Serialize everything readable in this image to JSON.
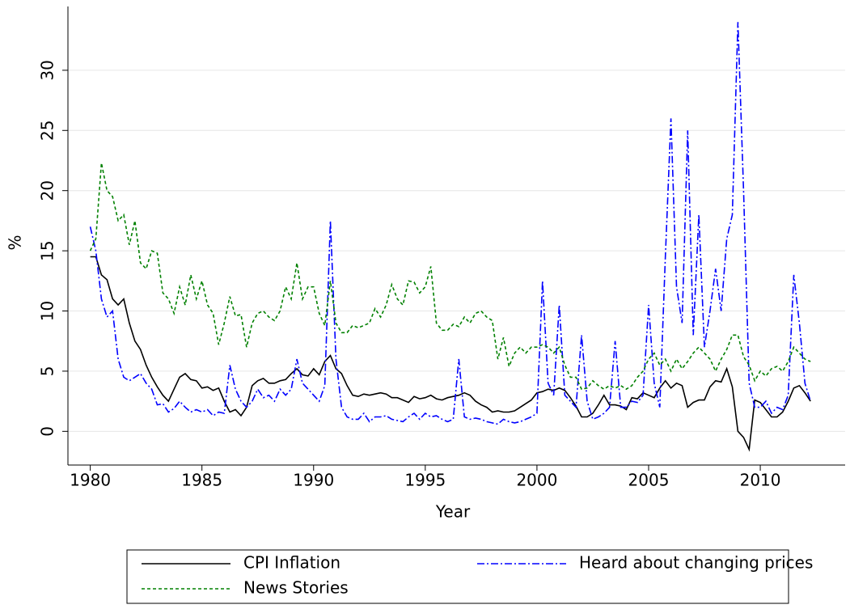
{
  "chart_data": {
    "type": "line",
    "x_label": "Year",
    "y_label": "%",
    "xlim": [
      1979,
      2013.8
    ],
    "ylim": [
      -2.8,
      35.3
    ],
    "xticks": [
      1980,
      1985,
      1990,
      1995,
      2000,
      2005,
      2010
    ],
    "yticks": [
      0,
      5,
      10,
      15,
      20,
      25,
      30
    ],
    "grid": true,
    "x": [
      1980,
      1980.25,
      1980.5,
      1980.75,
      1981,
      1981.25,
      1981.5,
      1981.75,
      1982,
      1982.25,
      1982.5,
      1982.75,
      1983,
      1983.25,
      1983.5,
      1983.75,
      1984,
      1984.25,
      1984.5,
      1984.75,
      1985,
      1985.25,
      1985.5,
      1985.75,
      1986,
      1986.25,
      1986.5,
      1986.75,
      1987,
      1987.25,
      1987.5,
      1987.75,
      1988,
      1988.25,
      1988.5,
      1988.75,
      1989,
      1989.25,
      1989.5,
      1989.75,
      1990,
      1990.25,
      1990.5,
      1990.75,
      1991,
      1991.25,
      1991.5,
      1991.75,
      1992,
      1992.25,
      1992.5,
      1992.75,
      1993,
      1993.25,
      1993.5,
      1993.75,
      1994,
      1994.25,
      1994.5,
      1994.75,
      1995,
      1995.25,
      1995.5,
      1995.75,
      1996,
      1996.25,
      1996.5,
      1996.75,
      1997,
      1997.25,
      1997.5,
      1997.75,
      1998,
      1998.25,
      1998.5,
      1998.75,
      1999,
      1999.25,
      1999.5,
      1999.75,
      2000,
      2000.25,
      2000.5,
      2000.75,
      2001,
      2001.25,
      2001.5,
      2001.75,
      2002,
      2002.25,
      2002.5,
      2002.75,
      2003,
      2003.25,
      2003.5,
      2003.75,
      2004,
      2004.25,
      2004.5,
      2004.75,
      2005,
      2005.25,
      2005.5,
      2005.75,
      2006,
      2006.25,
      2006.5,
      2006.75,
      2007,
      2007.25,
      2007.5,
      2007.75,
      2008,
      2008.25,
      2008.5,
      2008.75,
      2009,
      2009.25,
      2009.5,
      2009.75,
      2010,
      2010.25,
      2010.5,
      2010.75,
      2011,
      2011.25,
      2011.5,
      2011.75,
      2012,
      2012.25
    ],
    "series": [
      {
        "name": "CPI Inflation",
        "color": "#000000",
        "dash": "none",
        "values": [
          14.5,
          14.5,
          13,
          12.6,
          11,
          10.5,
          11,
          9,
          7.5,
          6.8,
          5.5,
          4.5,
          3.7,
          3,
          2.5,
          3.5,
          4.5,
          4.8,
          4.3,
          4.2,
          3.6,
          3.7,
          3.4,
          3.6,
          2.5,
          1.6,
          1.8,
          1.3,
          2,
          3.8,
          4.2,
          4.4,
          4,
          4,
          4.2,
          4.3,
          4.8,
          5.2,
          4.7,
          4.6,
          5.2,
          4.7,
          5.8,
          6.3,
          5.2,
          4.8,
          3.8,
          3,
          2.9,
          3.1,
          3,
          3.1,
          3.2,
          3.1,
          2.8,
          2.8,
          2.6,
          2.4,
          2.9,
          2.7,
          2.8,
          3,
          2.7,
          2.6,
          2.8,
          2.9,
          3,
          3.2,
          3,
          2.5,
          2.2,
          2,
          1.6,
          1.7,
          1.6,
          1.6,
          1.7,
          2,
          2.3,
          2.6,
          3.2,
          3.3,
          3.5,
          3.4,
          3.6,
          3.4,
          2.8,
          2.1,
          1.2,
          1.2,
          1.5,
          2.2,
          3,
          2.2,
          2.2,
          2.1,
          1.8,
          2.8,
          2.7,
          3.2,
          3,
          2.8,
          3.6,
          4.2,
          3.6,
          4,
          3.8,
          2,
          2.4,
          2.6,
          2.6,
          3.7,
          4.2,
          4.1,
          5.2,
          3.7,
          0,
          -0.5,
          -1.5,
          2.6,
          2.4,
          1.8,
          1.2,
          1.2,
          1.6,
          2.5,
          3.6,
          3.8,
          3.2,
          2.5
        ]
      },
      {
        "name": "Heard about changing prices",
        "color": "#0000ff",
        "dash": "9,3,2,3",
        "values": [
          17,
          15,
          11,
          9.5,
          10,
          6,
          4.5,
          4.2,
          4.5,
          4.8,
          4,
          3.5,
          2.2,
          2.3,
          1.6,
          1.9,
          2.5,
          2,
          1.6,
          1.8,
          1.6,
          1.8,
          1.3,
          1.6,
          1.5,
          5.5,
          3.5,
          2.5,
          2,
          2.5,
          3.5,
          2.8,
          3,
          2.5,
          3.5,
          3,
          3.5,
          6,
          4,
          3.5,
          3,
          2.5,
          3.8,
          17.5,
          6,
          2,
          1.2,
          1,
          1,
          1.5,
          0.8,
          1.2,
          1.2,
          1.3,
          1,
          0.9,
          0.8,
          1.2,
          1.5,
          1,
          1.5,
          1.2,
          1.3,
          1,
          0.8,
          1,
          6,
          1.2,
          1,
          1.1,
          1,
          0.8,
          0.7,
          0.6,
          1,
          0.8,
          0.7,
          0.8,
          1,
          1.2,
          1.5,
          12.5,
          4,
          3,
          10.5,
          3,
          2.5,
          2,
          8,
          2.5,
          1,
          1.2,
          1.5,
          2,
          7.5,
          2,
          2,
          2.5,
          2.4,
          3,
          10.5,
          4,
          2,
          14.5,
          26,
          12,
          9,
          25,
          8,
          18,
          7,
          10,
          13.5,
          10,
          16,
          18,
          34,
          20,
          4,
          2,
          2,
          2.5,
          1.5,
          2,
          1.8,
          3,
          13,
          9,
          4,
          2.5
        ]
      },
      {
        "name": "News Stories",
        "color": "#008000",
        "dash": "4,3",
        "values": [
          15,
          16,
          22.3,
          20,
          19.5,
          17.5,
          18,
          15.5,
          17.5,
          14,
          13.5,
          15,
          14.8,
          11.5,
          11,
          9.8,
          12,
          10.5,
          13,
          11,
          12.5,
          10.5,
          9.8,
          7.2,
          9,
          11.2,
          9.6,
          9.7,
          7,
          9,
          9.8,
          10,
          9.5,
          9.2,
          10,
          12,
          11,
          14,
          11,
          12,
          12,
          9.8,
          8.8,
          12.5,
          9,
          8.2,
          8.2,
          8.8,
          8.6,
          8.8,
          9,
          10.2,
          9.5,
          10.5,
          12.2,
          11,
          10.5,
          12.5,
          12.4,
          11.5,
          12,
          13.7,
          9,
          8.4,
          8.4,
          8.9,
          8.7,
          9.5,
          9,
          9.8,
          10,
          9.5,
          9.2,
          6,
          7.8,
          5.4,
          6.5,
          7,
          6.5,
          7,
          7,
          7.2,
          7,
          6.5,
          7,
          5.5,
          4.5,
          4.5,
          3.5,
          3.6,
          4.2,
          3.8,
          3.5,
          3.8,
          3.6,
          3.8,
          3.5,
          3.8,
          4.5,
          5,
          6,
          6.5,
          5.5,
          6,
          5,
          6,
          5.2,
          5.8,
          6.5,
          7,
          6.5,
          6,
          5,
          6,
          6.8,
          8,
          8,
          6.2,
          5.5,
          4.2,
          5,
          4.6,
          5.2,
          5.4,
          5,
          5.8,
          7,
          6.5,
          6,
          5.8
        ]
      }
    ]
  }
}
